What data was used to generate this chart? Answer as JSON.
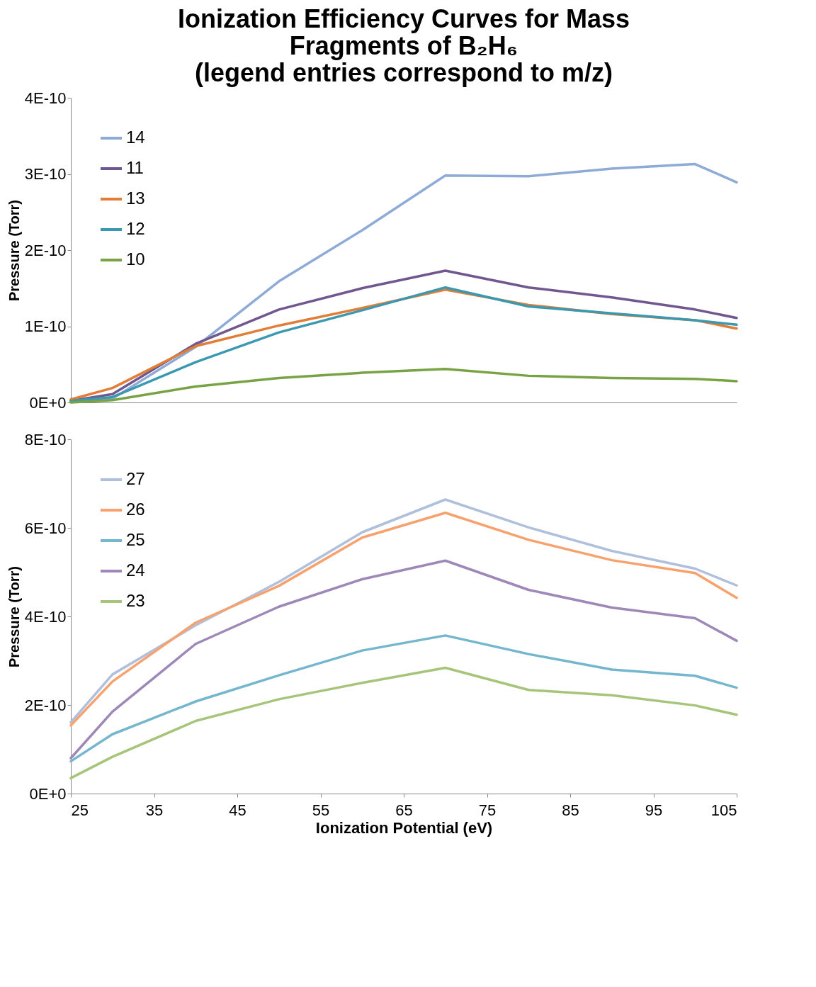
{
  "chart_data": [
    {
      "type": "line",
      "title": "Ionization Efficiency Curves for Mass\nFragments of B₂H₆\n(legend entries correspond to m/z)",
      "ylabel": "Pressure (Torr)",
      "x": [
        25,
        30,
        40,
        50,
        60,
        70,
        80,
        90,
        100,
        105
      ],
      "xlim": [
        25,
        105
      ],
      "xticks": [
        25,
        35,
        45,
        55,
        65,
        75,
        85,
        95,
        105
      ],
      "ylim": [
        0,
        4e-10
      ],
      "yticks": [
        {
          "value": 0,
          "label": "0E+0"
        },
        {
          "value": 1e-10,
          "label": "1E-10"
        },
        {
          "value": 2e-10,
          "label": "2E-10"
        },
        {
          "value": 3e-10,
          "label": "3E-10"
        },
        {
          "value": 4e-10,
          "label": "4E-10"
        }
      ],
      "tick_labels": "y",
      "legend": "top left",
      "series": [
        {
          "name": "14",
          "color": "#8eaad6",
          "values": [
            2e-12,
            5e-12,
            7.3e-11,
            1.59e-10,
            2.26e-10,
            2.98e-10,
            2.97e-10,
            3.07e-10,
            3.13e-10,
            2.89e-10
          ]
        },
        {
          "name": "11",
          "color": "#71578f",
          "values": [
            2e-12,
            1.1e-11,
            7.7e-11,
            1.22e-10,
            1.5e-10,
            1.73e-10,
            1.51e-10,
            1.38e-10,
            1.22e-10,
            1.11e-10
          ]
        },
        {
          "name": "13",
          "color": "#e07e38",
          "values": [
            4e-12,
            1.9e-11,
            7.4e-11,
            1.01e-10,
            1.24e-10,
            1.48e-10,
            1.28e-10,
            1.16e-10,
            1.08e-10,
            9.7e-11
          ]
        },
        {
          "name": "12",
          "color": "#3a98b0",
          "values": [
            2e-12,
            7e-12,
            5.3e-11,
            9.2e-11,
            1.21e-10,
            1.51e-10,
            1.26e-10,
            1.17e-10,
            1.08e-10,
            1.02e-10
          ]
        },
        {
          "name": "10",
          "color": "#77a345",
          "values": [
            0,
            3e-12,
            2.1e-11,
            3.2e-11,
            3.9e-11,
            4.4e-11,
            3.5e-11,
            3.2e-11,
            3.1e-11,
            2.8e-11
          ]
        }
      ]
    },
    {
      "type": "line",
      "xlabel": "Ionization Potential (eV)",
      "ylabel": "Pressure (Torr)",
      "x": [
        25,
        30,
        40,
        50,
        60,
        70,
        80,
        90,
        100,
        105
      ],
      "xlim": [
        25,
        105
      ],
      "xticks": [
        25,
        35,
        45,
        55,
        65,
        75,
        85,
        95,
        105
      ],
      "ylim": [
        0,
        8e-10
      ],
      "yticks": [
        {
          "value": 0,
          "label": "0E+0"
        },
        {
          "value": 2e-10,
          "label": "2E-10"
        },
        {
          "value": 4e-10,
          "label": "4E-10"
        },
        {
          "value": 6e-10,
          "label": "6E-10"
        },
        {
          "value": 8e-10,
          "label": "8E-10"
        }
      ],
      "legend": "top left",
      "series": [
        {
          "name": "27",
          "color": "#b0c0dc",
          "values": [
            1.61e-10,
            2.69e-10,
            3.8e-10,
            4.78e-10,
            5.9e-10,
            6.64e-10,
            6.01e-10,
            5.48e-10,
            5.08e-10,
            4.7e-10
          ]
        },
        {
          "name": "26",
          "color": "#f7a26e",
          "values": [
            1.54e-10,
            2.53e-10,
            3.86e-10,
            4.69e-10,
            5.78e-10,
            6.34e-10,
            5.73e-10,
            5.27e-10,
            4.98e-10,
            4.42e-10
          ]
        },
        {
          "name": "25",
          "color": "#75b6cf",
          "values": [
            7.3e-11,
            1.34e-10,
            2.08e-10,
            2.67e-10,
            3.23e-10,
            3.57e-10,
            3.15e-10,
            2.8e-10,
            2.66e-10,
            2.39e-10
          ]
        },
        {
          "name": "24",
          "color": "#9d88b8",
          "values": [
            8e-11,
            1.85e-10,
            3.38e-10,
            4.22e-10,
            4.84e-10,
            5.26e-10,
            4.6e-10,
            4.2e-10,
            3.96e-10,
            3.45e-10
          ]
        },
        {
          "name": "23",
          "color": "#a6c57a",
          "values": [
            3.5e-11,
            8.3e-11,
            1.64e-10,
            2.13e-10,
            2.5e-10,
            2.84e-10,
            2.34e-10,
            2.22e-10,
            1.99e-10,
            1.78e-10
          ]
        }
      ]
    }
  ]
}
